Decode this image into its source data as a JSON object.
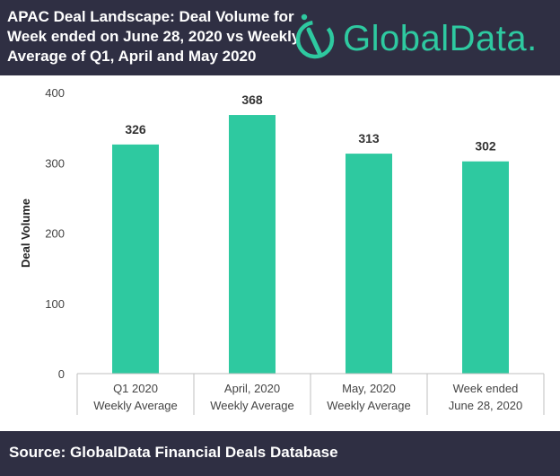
{
  "header": {
    "title_lines": [
      "APAC Deal Landscape: Deal Volume for",
      "Week ended on June 28, 2020 vs Weekly",
      "Average of Q1, April and May 2020"
    ],
    "logo_text": "GlobalData.",
    "logo_icon": "globaldata-logo-icon"
  },
  "colors": {
    "header_bg": "#2f2f43",
    "bar": "#2ec9a0",
    "brand": "#2ec9a0"
  },
  "chart_data": {
    "type": "bar",
    "categories": [
      [
        "Q1 2020",
        "Weekly Average"
      ],
      [
        "April, 2020",
        "Weekly Average"
      ],
      [
        "May, 2020",
        "Weekly Average"
      ],
      [
        "Week ended",
        "June 28, 2020"
      ]
    ],
    "values": [
      326,
      368,
      313,
      302
    ],
    "data_labels": [
      "326",
      "368",
      "313",
      "302"
    ],
    "ylabel": "Deal Volume",
    "xlabel": "",
    "ylim": [
      0,
      400
    ],
    "yticks": [
      "0",
      "100",
      "200",
      "300",
      "400"
    ],
    "grid": false
  },
  "footer": {
    "source": "Source: GlobalData Financial Deals Database"
  }
}
